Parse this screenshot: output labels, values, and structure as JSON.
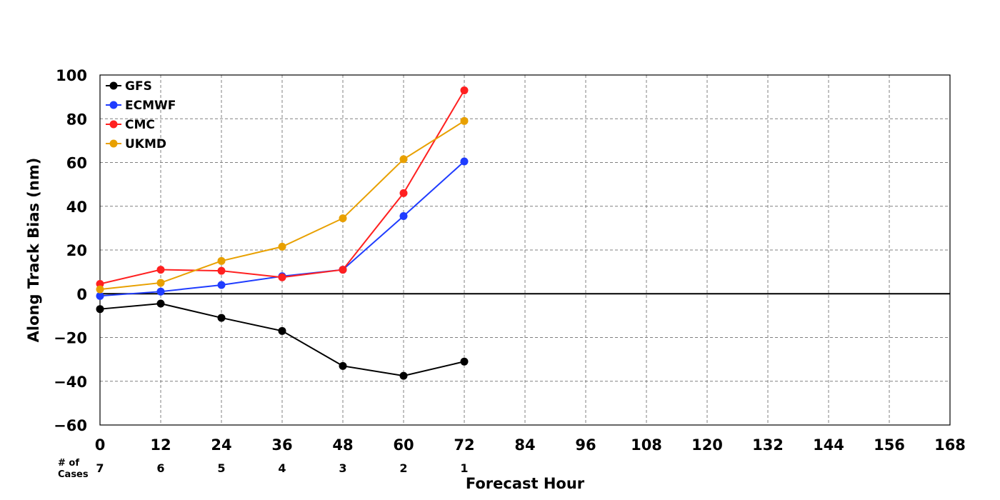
{
  "chart_data": {
    "type": "line",
    "xlabel": "Forecast Hour",
    "ylabel": "Along Track Bias (nm)",
    "xlim": [
      0,
      168
    ],
    "ylim": [
      -60,
      100
    ],
    "x_ticks": [
      0,
      12,
      24,
      36,
      48,
      60,
      72,
      84,
      96,
      108,
      120,
      132,
      144,
      156,
      168
    ],
    "y_ticks": [
      100,
      80,
      60,
      40,
      20,
      0,
      -20,
      -40,
      -60
    ],
    "y_tick_labels": [
      "100",
      "80",
      "60",
      "40",
      "20",
      "0",
      "−20",
      "−40",
      "−60"
    ],
    "grid": true,
    "legend_position": "top-left",
    "x": [
      0,
      12,
      24,
      36,
      48,
      60,
      72
    ],
    "series": [
      {
        "name": "GFS",
        "color": "#000000",
        "values": [
          -7,
          -4.5,
          -11,
          -17,
          -33,
          -37.5,
          -31
        ]
      },
      {
        "name": "ECMWF",
        "color": "#1f3cff",
        "values": [
          -1,
          1,
          4,
          8,
          11,
          35.5,
          60.5
        ]
      },
      {
        "name": "CMC",
        "color": "#ff2020",
        "values": [
          4.5,
          11,
          10.5,
          7.5,
          11,
          46,
          93
        ]
      },
      {
        "name": "UKMD",
        "color": "#e8a000",
        "values": [
          2,
          5,
          15,
          21.5,
          34.5,
          61.5,
          79
        ]
      }
    ],
    "cases": {
      "label_line1": "# of",
      "label_line2": "Cases",
      "x": [
        0,
        12,
        24,
        36,
        48,
        60,
        72
      ],
      "values": [
        "7",
        "6",
        "5",
        "4",
        "3",
        "2",
        "1"
      ]
    }
  }
}
